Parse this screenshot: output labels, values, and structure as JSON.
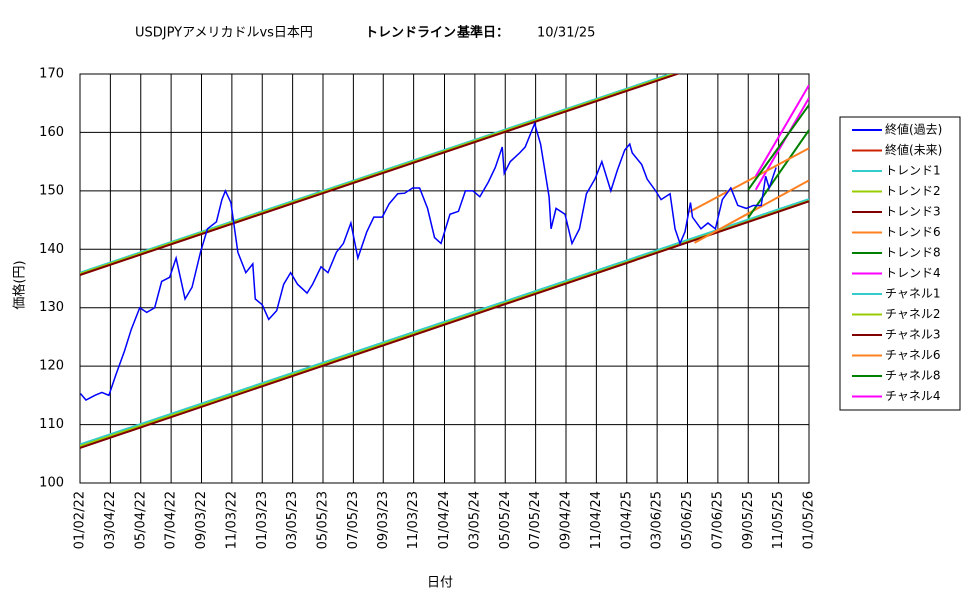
{
  "chart_data": {
    "type": "line",
    "title": "USDJPYアメリカドルvs日本円",
    "subtitle": "トレンドライン",
    "base_label": "基準日：",
    "base_date": "10/31/25",
    "x_label": "日付",
    "y_label": "価格(円)",
    "xlim": [
      "01/02/22",
      "01/05/26"
    ],
    "xticks": [
      "01/02/22",
      "03/04/22",
      "05/04/22",
      "07/04/22",
      "09/03/22",
      "11/03/22",
      "01/03/23",
      "03/05/23",
      "05/05/23",
      "07/05/23",
      "09/03/23",
      "11/03/23",
      "01/04/24",
      "03/05/24",
      "05/05/24",
      "07/05/24",
      "09/04/24",
      "11/04/24",
      "01/04/25",
      "03/06/25",
      "05/06/25",
      "07/06/25",
      "09/05/25",
      "11/05/25",
      "01/05/26"
    ],
    "ylim": [
      100,
      170
    ],
    "yticks": [
      100,
      110,
      120,
      130,
      140,
      150,
      160,
      170
    ],
    "grid": true,
    "legend": "right",
    "series": [
      {
        "name": "終値(過去)",
        "color": "#0000ff",
        "x": [
          "01/03/22",
          "01/14/22",
          "02/01/22",
          "02/15/22",
          "03/01/22",
          "03/15/22",
          "04/01/22",
          "04/15/22",
          "05/02/22",
          "05/16/22",
          "06/01/22",
          "06/15/22",
          "07/01/22",
          "07/14/22",
          "08/01/22",
          "08/15/22",
          "09/01/22",
          "09/15/22",
          "10/03/22",
          "10/14/22",
          "10/21/22",
          "11/01/22",
          "11/15/22",
          "12/01/22",
          "12/15/22",
          "12/20/22",
          "01/03/23",
          "01/16/23",
          "02/01/23",
          "02/15/23",
          "03/01/23",
          "03/15/23",
          "04/03/23",
          "04/14/23",
          "05/01/23",
          "05/15/23",
          "06/01/23",
          "06/15/23",
          "06/30/23",
          "07/14/23",
          "08/01/23",
          "08/15/23",
          "09/01/23",
          "09/15/23",
          "10/02/23",
          "10/16/23",
          "11/01/23",
          "11/15/23",
          "12/01/23",
          "12/15/23",
          "12/28/23",
          "01/15/24",
          "02/01/24",
          "02/15/24",
          "03/01/24",
          "03/15/24",
          "04/01/24",
          "04/15/24",
          "04/29/24",
          "05/03/24",
          "05/15/24",
          "06/03/24",
          "06/14/24",
          "07/03/24",
          "07/15/24",
          "08/01/24",
          "08/05/24",
          "08/15/24",
          "09/02/24",
          "09/16/24",
          "10/01/24",
          "10/15/24",
          "11/01/24",
          "11/15/24",
          "12/03/24",
          "12/16/24",
          "12/31/24",
          "01/10/25",
          "01/15/25",
          "02/03/25",
          "02/14/25",
          "03/03/25",
          "03/14/25",
          "04/01/25",
          "04/11/25",
          "04/21/25",
          "05/01/25",
          "05/12/25",
          "05/16/25",
          "06/02/25",
          "06/16/25",
          "07/01/25",
          "07/15/25",
          "08/01/25",
          "08/15/25",
          "09/01/25",
          "09/15/25",
          "10/01/25",
          "10/10/25",
          "10/17/25",
          "10/31/25"
        ],
        "values": [
          115.3,
          114.2,
          115.0,
          115.5,
          115.0,
          118.5,
          122.5,
          126.3,
          130.0,
          129.2,
          130.0,
          134.5,
          135.2,
          138.5,
          131.5,
          133.5,
          139.5,
          143.5,
          144.7,
          148.5,
          150.0,
          148.0,
          139.5,
          136.0,
          137.5,
          131.5,
          130.5,
          128.0,
          129.5,
          134.0,
          136.0,
          134.0,
          132.5,
          134.0,
          137.0,
          136.0,
          139.5,
          141.0,
          144.5,
          138.5,
          143.0,
          145.5,
          145.5,
          147.8,
          149.5,
          149.6,
          150.5,
          150.5,
          147.0,
          142.0,
          141.0,
          146.0,
          146.5,
          150.0,
          150.0,
          149.0,
          151.5,
          154.0,
          157.5,
          153.0,
          155.0,
          156.5,
          157.5,
          161.5,
          158.0,
          149.0,
          143.5,
          147.0,
          146.0,
          141.0,
          143.5,
          149.5,
          152.0,
          155.0,
          150.0,
          153.5,
          157.0,
          158.0,
          156.5,
          154.5,
          152.0,
          150.0,
          148.5,
          149.5,
          143.5,
          141.0,
          143.0,
          148.0,
          145.5,
          143.5,
          144.5,
          143.5,
          148.5,
          150.5,
          147.5,
          147.0,
          147.5,
          147.5,
          152.5,
          150.5,
          154.0
        ]
      },
      {
        "name": "終値(未来)",
        "color": "#cc2200",
        "x": [],
        "values": []
      },
      {
        "name": "トレンド1",
        "color": "#33cccc",
        "x": [
          "01/02/22",
          "01/05/26"
        ],
        "values": [
          106.6,
          148.6
        ]
      },
      {
        "name": "トレンド2",
        "color": "#99cc00",
        "x": [
          "01/02/22",
          "01/05/26"
        ],
        "values": [
          106.3,
          148.3
        ]
      },
      {
        "name": "トレンド3",
        "color": "#800000",
        "x": [
          "01/02/22",
          "01/05/26"
        ],
        "values": [
          106.0,
          148.2
        ]
      },
      {
        "name": "トレンド6",
        "color": "#ff8020",
        "x": [
          "05/20/25",
          "01/05/26"
        ],
        "values": [
          141.1,
          151.8
        ]
      },
      {
        "name": "トレンド8",
        "color": "#008000",
        "x": [
          "09/05/25",
          "01/05/26"
        ],
        "values": [
          145.4,
          160.4
        ]
      },
      {
        "name": "トレンド4",
        "color": "#ff00ff",
        "x": [
          "09/20/25",
          "01/05/26"
        ],
        "values": [
          150.2,
          165.9
        ]
      },
      {
        "name": "チャネル1",
        "color": "#33cccc",
        "x": [
          "01/02/22",
          "01/05/26"
        ],
        "values": [
          136.0,
          178.0
        ]
      },
      {
        "name": "チャネル2",
        "color": "#99cc00",
        "x": [
          "01/02/22",
          "01/05/26"
        ],
        "values": [
          135.8,
          177.8
        ]
      },
      {
        "name": "チャネル3",
        "color": "#800000",
        "x": [
          "01/02/22",
          "01/05/26"
        ],
        "values": [
          135.6,
          177.6
        ]
      },
      {
        "name": "チャネル6",
        "color": "#ff8020",
        "x": [
          "05/10/25",
          "01/05/26"
        ],
        "values": [
          146.4,
          157.3
        ]
      },
      {
        "name": "チャネル8",
        "color": "#008000",
        "x": [
          "09/05/25",
          "01/05/26"
        ],
        "values": [
          150.2,
          164.7
        ]
      },
      {
        "name": "チャネル4",
        "color": "#ff00ff",
        "x": [
          "09/20/25",
          "01/05/26"
        ],
        "values": [
          152.5,
          168.1
        ]
      }
    ]
  }
}
